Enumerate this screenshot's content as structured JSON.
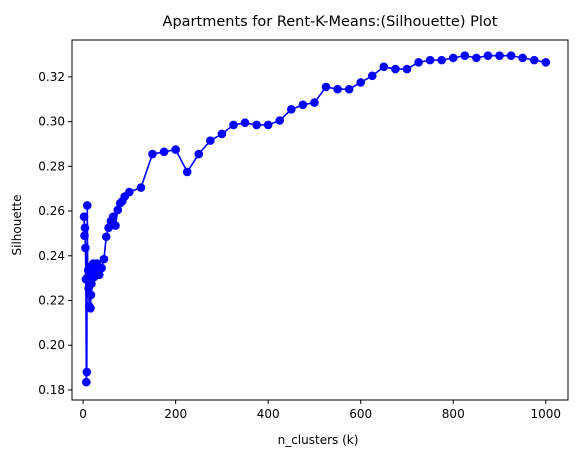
{
  "chart_data": {
    "type": "line",
    "title": "Apartments for Rent-K-Means:(Silhouette) Plot",
    "xlabel": "n_clusters (k)",
    "ylabel": "Silhouette",
    "xlim": [
      -24,
      1048
    ],
    "ylim": [
      0.1755,
      0.3365
    ],
    "xticks": [
      0,
      200,
      400,
      600,
      800,
      1000
    ],
    "xtick_labels": [
      "0",
      "200",
      "400",
      "600",
      "800",
      "1000"
    ],
    "yticks": [
      0.18,
      0.2,
      0.22,
      0.24,
      0.26,
      0.28,
      0.3,
      0.32
    ],
    "ytick_labels": [
      "0.18",
      "0.20",
      "0.22",
      "0.24",
      "0.26",
      "0.28",
      "0.30",
      "0.32"
    ],
    "grid": false,
    "series": [
      {
        "name": "Silhouette",
        "color": "#0000ff",
        "x": [
          2,
          3,
          4,
          5,
          6,
          7,
          8,
          9,
          10,
          11,
          12,
          13,
          14,
          15,
          16,
          17,
          18,
          19,
          20,
          22,
          24,
          26,
          28,
          30,
          35,
          40,
          45,
          50,
          55,
          60,
          65,
          70,
          75,
          80,
          85,
          90,
          100,
          125,
          150,
          175,
          200,
          225,
          250,
          275,
          300,
          325,
          350,
          375,
          400,
          425,
          450,
          475,
          500,
          525,
          550,
          575,
          600,
          625,
          650,
          675,
          700,
          725,
          750,
          775,
          800,
          825,
          850,
          875,
          900,
          925,
          950,
          975,
          1000
        ],
        "values": [
          0.2575,
          0.249,
          0.2525,
          0.2435,
          0.2295,
          0.1835,
          0.188,
          0.2625,
          0.2305,
          0.2335,
          0.2255,
          0.2175,
          0.2285,
          0.2305,
          0.2165,
          0.2225,
          0.2275,
          0.2355,
          0.2305,
          0.2365,
          0.2305,
          0.2325,
          0.2335,
          0.2365,
          0.2315,
          0.2345,
          0.2385,
          0.2485,
          0.2525,
          0.2555,
          0.2575,
          0.2535,
          0.2605,
          0.2635,
          0.2645,
          0.2665,
          0.2685,
          0.2705,
          0.2855,
          0.2865,
          0.2875,
          0.2775,
          0.2855,
          0.2915,
          0.2945,
          0.2985,
          0.2995,
          0.2985,
          0.2985,
          0.3005,
          0.3055,
          0.3075,
          0.3085,
          0.3155,
          0.3145,
          0.3145,
          0.3175,
          0.3205,
          0.3245,
          0.3235,
          0.3235,
          0.3265,
          0.3275,
          0.3275,
          0.3285,
          0.3295,
          0.3285,
          0.3295,
          0.3295,
          0.3295,
          0.3285,
          0.3275,
          0.3265
        ]
      }
    ]
  }
}
